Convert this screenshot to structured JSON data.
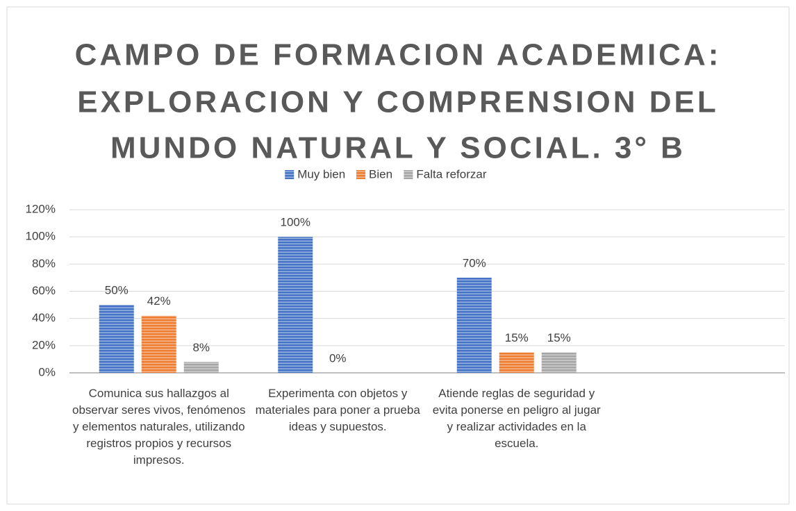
{
  "chart_data": {
    "type": "bar",
    "title": [
      "CAMPO DE FORMACION ACADEMICA:",
      "EXPLORACION Y COMPRENSION DEL",
      "MUNDO NATURAL Y SOCIAL. 3° B"
    ],
    "categories": [
      "Comunica sus hallazgos al observar seres vivos, fenómenos y elementos naturales, utilizando registros propios y recursos impresos.",
      "Experimenta con objetos y materiales para poner a prueba ideas y supuestos.",
      "Atiende reglas de seguridad y evita ponerse en peligro al jugar y realizar actividades en la escuela.",
      null
    ],
    "series": [
      {
        "name": "Muy bien",
        "color": "#4472c4",
        "values": [
          50,
          100,
          70,
          null
        ],
        "value_labels": [
          "50%",
          "100%",
          "70%",
          null
        ]
      },
      {
        "name": "Bien",
        "color": "#ed7d31",
        "values": [
          42,
          0,
          15,
          null
        ],
        "value_labels": [
          "42%",
          "0%",
          "15%",
          null
        ]
      },
      {
        "name": "Falta reforzar",
        "color": "#a5a5a5",
        "values": [
          8,
          null,
          15,
          null
        ],
        "value_labels": [
          "8%",
          null,
          "15%",
          null
        ]
      }
    ],
    "ylim": [
      0,
      120
    ],
    "yticks": [
      {
        "value": 0,
        "label": "0%"
      },
      {
        "value": 20,
        "label": "20%"
      },
      {
        "value": 40,
        "label": "40%"
      },
      {
        "value": 60,
        "label": "60%"
      },
      {
        "value": 80,
        "label": "80%"
      },
      {
        "value": 100,
        "label": "100%"
      },
      {
        "value": 120,
        "label": "120%"
      }
    ],
    "grid": true,
    "legend": "top"
  }
}
